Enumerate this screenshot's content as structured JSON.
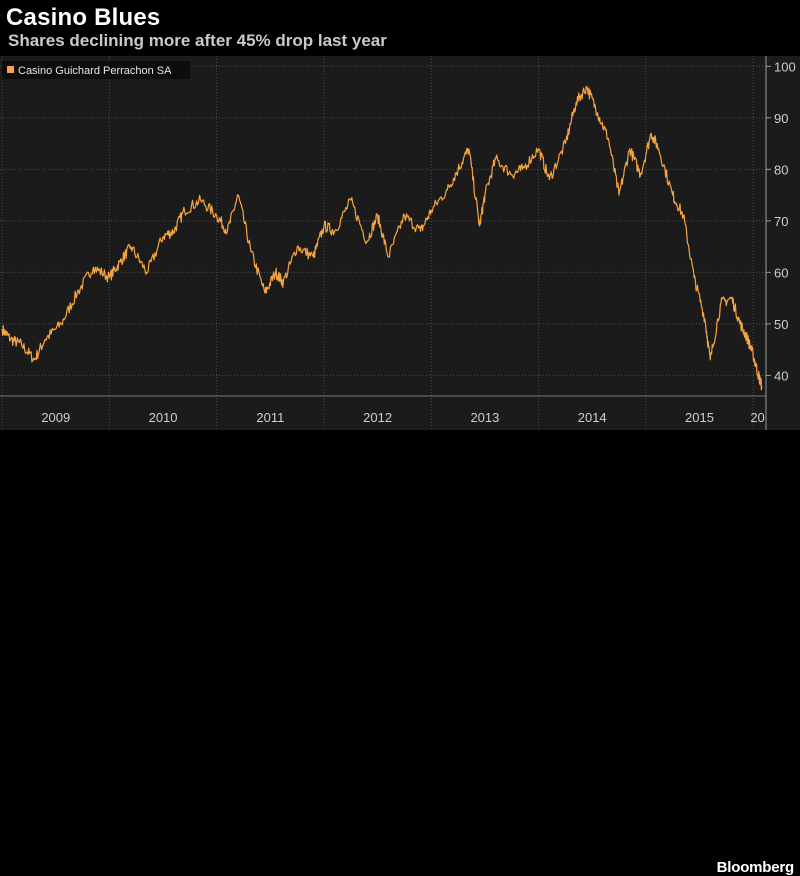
{
  "header": {
    "title": "Casino Blues",
    "subtitle": "Shares declining more after 45% drop last year"
  },
  "footer": {
    "brand": "Bloomberg"
  },
  "colors": {
    "background": "#1b1b1b",
    "line": "#f7a540",
    "grid": "#4d4d4d",
    "text": "#cfcfcf"
  },
  "chart_data": {
    "type": "line",
    "title": "Casino Blues",
    "subtitle": "Shares declining more after 45% drop last year",
    "ylim": [
      36,
      102
    ],
    "y_ticks": [
      40,
      50,
      60,
      70,
      80,
      90,
      100
    ],
    "x_tick_labels": [
      "2009",
      "2010",
      "2011",
      "2012",
      "2013",
      "2014",
      "2015",
      "20"
    ],
    "legend": {
      "position": "top-left",
      "entries": [
        "Casino Guichard Perrachon SA"
      ]
    },
    "grid": true,
    "series": [
      {
        "name": "Casino Guichard Perrachon SA",
        "x": [
          2009.0,
          2009.08,
          2009.18,
          2009.3,
          2009.4,
          2009.55,
          2009.7,
          2009.85,
          2010.0,
          2010.1,
          2010.2,
          2010.35,
          2010.5,
          2010.6,
          2010.7,
          2010.85,
          2011.0,
          2011.1,
          2011.2,
          2011.32,
          2011.45,
          2011.55,
          2011.62,
          2011.75,
          2011.9,
          2012.0,
          2012.1,
          2012.25,
          2012.4,
          2012.5,
          2012.6,
          2012.75,
          2012.9,
          2013.0,
          2013.15,
          2013.25,
          2013.35,
          2013.45,
          2013.5,
          2013.6,
          2013.75,
          2013.85,
          2014.0,
          2014.1,
          2014.25,
          2014.35,
          2014.45,
          2014.55,
          2014.65,
          2014.75,
          2014.85,
          2014.95,
          2015.05,
          2015.12,
          2015.25,
          2015.35,
          2015.45,
          2015.55,
          2015.6,
          2015.7,
          2015.8,
          2015.88,
          2015.95,
          2016.0,
          2016.05,
          2016.08
        ],
        "values": [
          49,
          47,
          46,
          43,
          47,
          50,
          56,
          61,
          59,
          62,
          65,
          60,
          67,
          68,
          72,
          74,
          71,
          68,
          75,
          64,
          56,
          60,
          58,
          65,
          63,
          69,
          68,
          74,
          66,
          71,
          63,
          71,
          68,
          72,
          76,
          80,
          84,
          69,
          75,
          82,
          79,
          80,
          84,
          78,
          85,
          93,
          96,
          91,
          86,
          75,
          84,
          79,
          87,
          84,
          75,
          71,
          59,
          51,
          43,
          54,
          55,
          50,
          47,
          44,
          40,
          38
        ]
      }
    ]
  }
}
